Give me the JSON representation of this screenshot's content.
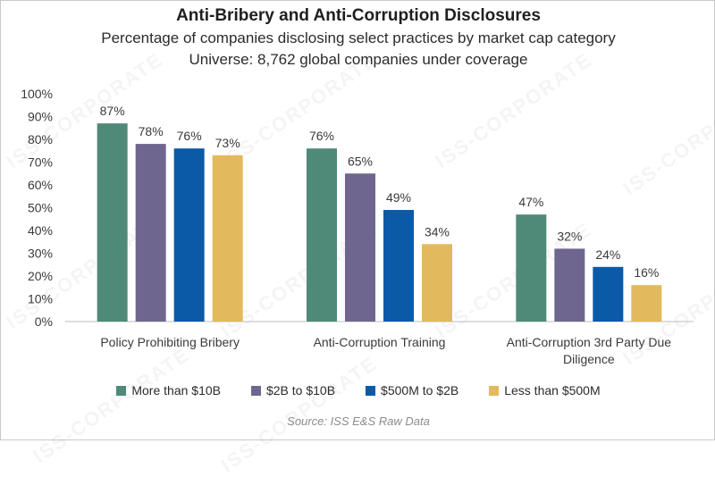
{
  "chart_data": {
    "type": "bar",
    "title": "Anti-Bribery and Anti-Corruption Disclosures",
    "subtitle": "Percentage of companies disclosing select practices by market cap category",
    "subtitle2": "Universe: 8,762 global companies under coverage",
    "categories": [
      "Policy Prohibiting Bribery",
      "Anti-Corruption Training",
      "Anti-Corruption 3rd Party Due Diligence"
    ],
    "category_lines": [
      [
        "Policy Prohibiting Bribery"
      ],
      [
        "Anti-Corruption Training"
      ],
      [
        "Anti-Corruption 3rd Party Due",
        "Diligence"
      ]
    ],
    "series": [
      {
        "name": "More than $10B",
        "values": [
          87,
          76,
          47
        ],
        "color": "#4f8a79"
      },
      {
        "name": "$2B to $10B",
        "values": [
          78,
          65,
          32
        ],
        "color": "#6f6690"
      },
      {
        "name": "$500M to $2B",
        "values": [
          76,
          49,
          24
        ],
        "color": "#0a5aa8"
      },
      {
        "name": "Less than $500M",
        "values": [
          73,
          34,
          16
        ],
        "color": "#e2b95c"
      }
    ],
    "ylim": [
      0,
      100
    ],
    "yticks": [
      "0%",
      "10%",
      "20%",
      "30%",
      "40%",
      "50%",
      "60%",
      "70%",
      "80%",
      "90%",
      "100%"
    ],
    "value_suffix": "%",
    "xlabel": "",
    "ylabel": "",
    "grid": false,
    "legend": "bottom"
  },
  "source": "Source: ISS E&S Raw Data",
  "watermark": "ISS-CORPORATE"
}
